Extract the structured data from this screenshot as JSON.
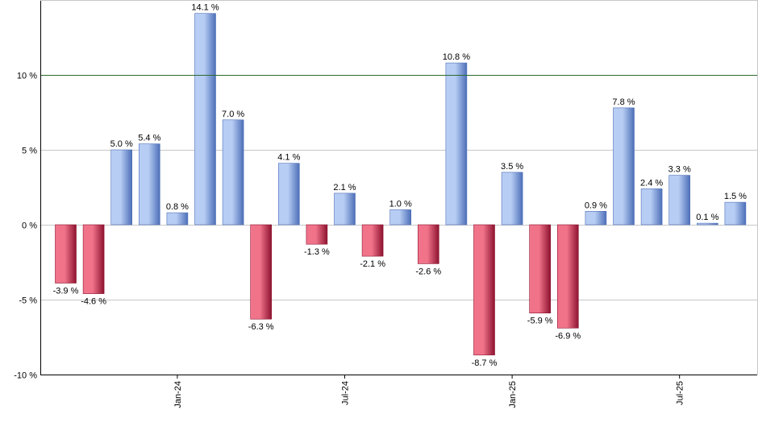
{
  "chart_data": {
    "type": "bar",
    "title": "",
    "xlabel": "",
    "ylabel": "",
    "ylim": [
      -10,
      15
    ],
    "y_ticks": [
      -10,
      -5,
      0,
      5,
      10
    ],
    "y_tick_suffix": " %",
    "value_suffix": " %",
    "reference_line": 10,
    "grid": true,
    "x_tick_labels": [
      {
        "label": "Jan-24",
        "index": 4
      },
      {
        "label": "Jul-24",
        "index": 10
      },
      {
        "label": "Jan-25",
        "index": 16
      },
      {
        "label": "Jul-25",
        "index": 22
      }
    ],
    "values": [
      -3.9,
      -4.6,
      5.0,
      5.4,
      0.8,
      14.1,
      7.0,
      -6.3,
      4.1,
      -1.3,
      2.1,
      -2.1,
      1.0,
      -2.6,
      10.8,
      -8.7,
      3.5,
      -5.9,
      -6.9,
      0.9,
      7.8,
      2.4,
      3.3,
      0.1,
      1.5
    ],
    "colors": {
      "positive_light": "#b7cdf3",
      "positive_dark": "#4d6fb8",
      "negative_light": "#f0738a",
      "negative_dark": "#8e1330",
      "reference_line": "#2d6a2d",
      "grid": "#c8c8c8",
      "axis": "#000000"
    }
  }
}
